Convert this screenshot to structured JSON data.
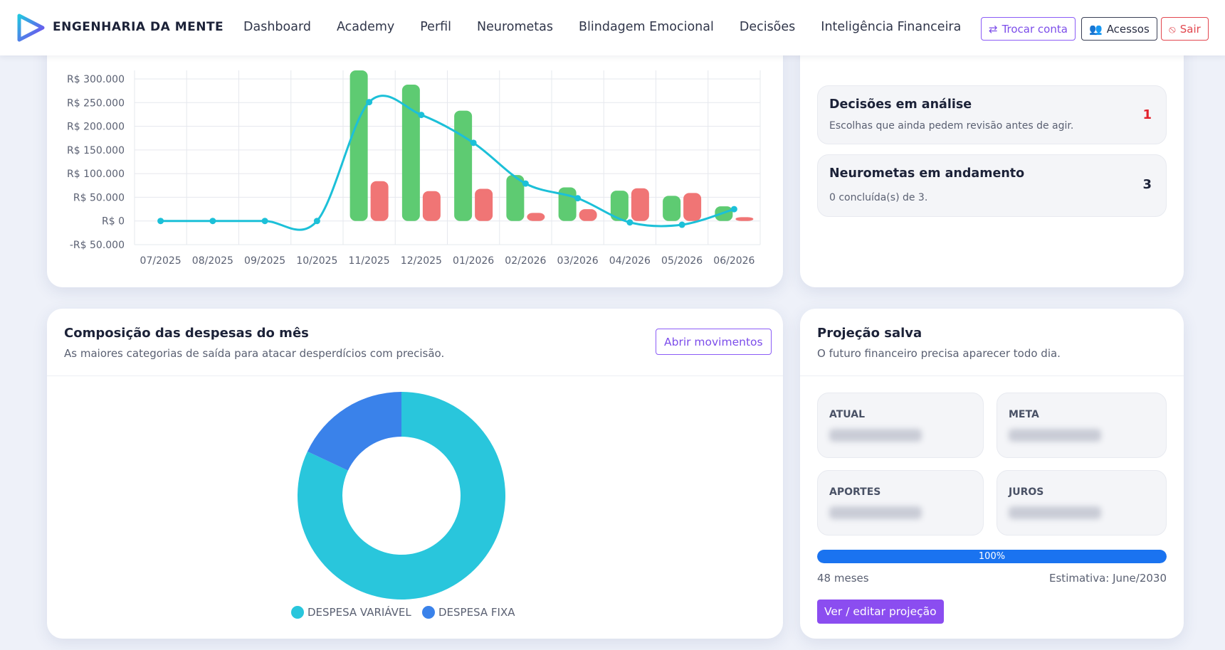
{
  "header": {
    "brand": "ENGENHARIA DA MENTE",
    "links": [
      "Dashboard",
      "Academy",
      "Perfil",
      "Neurometas",
      "Blindagem Emocional",
      "Decisões",
      "Inteligência Financeira"
    ],
    "buttons": [
      "Trocar conta",
      "Acessos",
      "Sair"
    ]
  },
  "decisions": [
    {
      "title": "Decisões em análise",
      "subtitle": "Escolhas que ainda pedem revisão antes de agir.",
      "value": 1
    },
    {
      "title": "Neurometas em andamento",
      "subtitle": "0 concluída(s) de 3.",
      "value": 3
    }
  ],
  "expenses": {
    "title": "Composição das despesas do mês",
    "subtitle": "As maiores categorias de saída para atacar desperdícios com precisão.",
    "button": "Abrir movimentos"
  },
  "projection": {
    "title": "Projeção salva",
    "subtitle": "O futuro financeiro precisa aparecer todo dia.",
    "tiles": [
      "ATUAL",
      "META",
      "APORTES",
      "JUROS"
    ],
    "progress": {
      "value": 100,
      "label": "100%"
    },
    "months": "48 meses",
    "estimate": "Estimativa: June/2030",
    "button": "Ver / editar projeção"
  },
  "chart_data": [
    {
      "type": "combo",
      "categories": [
        "07/2025",
        "08/2025",
        "09/2025",
        "10/2025",
        "11/2025",
        "12/2025",
        "01/2026",
        "02/2026",
        "03/2026",
        "04/2026",
        "05/2026",
        "06/2026"
      ],
      "series": [
        {
          "kind": "bar",
          "color": "#5ecb72",
          "values": [
            0,
            0,
            0,
            0,
            318000,
            288000,
            233000,
            97000,
            71000,
            64000,
            53000,
            31000
          ]
        },
        {
          "kind": "bar",
          "color": "#f07575",
          "values": [
            0,
            0,
            0,
            0,
            84000,
            63000,
            68000,
            17000,
            25000,
            69000,
            59000,
            8000
          ]
        },
        {
          "kind": "line",
          "color": "#1cc0d8",
          "values": [
            0,
            0,
            0,
            0,
            251000,
            224000,
            165000,
            79000,
            48000,
            -3000,
            -8000,
            25000
          ]
        }
      ],
      "ylim": [
        -50000,
        318000
      ],
      "yticks": [
        {
          "value": -50000,
          "label": "-R$ 50.000"
        },
        {
          "value": 0,
          "label": "R$ 0"
        },
        {
          "value": 50000,
          "label": "R$ 50.000"
        },
        {
          "value": 100000,
          "label": "R$ 100.000"
        },
        {
          "value": 150000,
          "label": "R$ 150.000"
        },
        {
          "value": 200000,
          "label": "R$ 200.000"
        },
        {
          "value": 250000,
          "label": "R$ 250.000"
        },
        {
          "value": 300000,
          "label": "R$ 300.000"
        }
      ],
      "grid": true
    },
    {
      "type": "donut",
      "categories": [
        "DESPESA VARIÁVEL",
        "DESPESA FIXA"
      ],
      "values": [
        82,
        18
      ],
      "colors": [
        "#29c6dc",
        "#3a82ea"
      ]
    }
  ]
}
